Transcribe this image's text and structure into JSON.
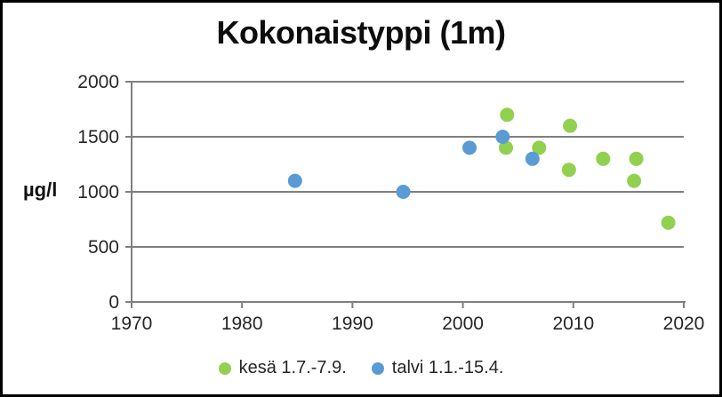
{
  "frame": {
    "background": "#ffffff",
    "border_color": "#000000"
  },
  "chart_data": {
    "type": "scatter",
    "title": "Kokonaistyppi (1m)",
    "xlabel": "",
    "ylabel": "µg/l",
    "xlim": [
      1970,
      2020
    ],
    "ylim": [
      0,
      2000
    ],
    "xticks": [
      1970,
      1980,
      1990,
      2000,
      2010,
      2020
    ],
    "yticks": [
      0,
      500,
      1000,
      1500,
      2000
    ],
    "grid": true,
    "legend_position": "bottom",
    "colors": {
      "gridline": "#7f7f7f",
      "axis": "#7f7f7f",
      "tick_text": "#262626",
      "title_text": "#0d0d0d"
    },
    "series": [
      {
        "name": "kesä 1.7.-7.9.",
        "color": "#92d050",
        "points": [
          {
            "x": 2004.0,
            "y": 1700
          },
          {
            "x": 2003.9,
            "y": 1400
          },
          {
            "x": 2006.9,
            "y": 1400
          },
          {
            "x": 2009.7,
            "y": 1600
          },
          {
            "x": 2009.6,
            "y": 1200
          },
          {
            "x": 2012.7,
            "y": 1300
          },
          {
            "x": 2015.7,
            "y": 1300
          },
          {
            "x": 2015.5,
            "y": 1100
          },
          {
            "x": 2018.6,
            "y": 720
          }
        ]
      },
      {
        "name": "talvi 1.1.-15.4.",
        "color": "#5b9bd5",
        "points": [
          {
            "x": 1984.8,
            "y": 1100
          },
          {
            "x": 1994.6,
            "y": 1000
          },
          {
            "x": 2000.6,
            "y": 1400
          },
          {
            "x": 2003.6,
            "y": 1500
          },
          {
            "x": 2006.3,
            "y": 1300
          }
        ]
      }
    ]
  }
}
